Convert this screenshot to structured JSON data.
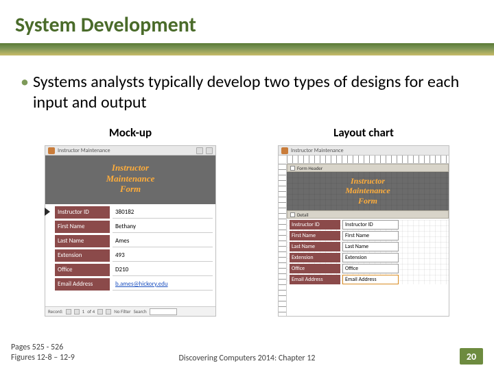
{
  "title": "System Development",
  "bullet": "Systems analysts typically develop two types of designs for each input and output",
  "columns": {
    "left_heading": "Mock-up",
    "right_heading": "Layout chart"
  },
  "mockup": {
    "window_title": "Instructor Maintenance",
    "header_line1": "Instructor",
    "header_line2": "Maintenance",
    "header_line3": "Form",
    "fields": [
      {
        "label": "Instructor ID",
        "value": "380182",
        "link": false
      },
      {
        "label": "First Name",
        "value": "Bethany",
        "link": false
      },
      {
        "label": "Last Name",
        "value": "Ames",
        "link": false
      },
      {
        "label": "Extension",
        "value": "493",
        "link": false
      },
      {
        "label": "Office",
        "value": "D210",
        "link": false
      },
      {
        "label": "Email Address",
        "value": "b.ames@hickory.edu",
        "link": true
      }
    ],
    "footer": {
      "record_label": "Record:",
      "record_pos": "1",
      "record_of": "of 4",
      "filter_text": "No Filter",
      "search_label": "Search"
    }
  },
  "layout": {
    "window_title": "Instructor Maintenance",
    "section_header": "Form Header",
    "section_detail": "Detail",
    "header_line1": "Instructor",
    "header_line2": "Maintenance",
    "header_line3": "Form",
    "fields": [
      {
        "label": "Instructor ID",
        "field": "Instructor ID"
      },
      {
        "label": "First Name",
        "field": "First Name"
      },
      {
        "label": "Last Name",
        "field": "Last Name"
      },
      {
        "label": "Extension",
        "field": "Extension"
      },
      {
        "label": "Office",
        "field": "Office"
      },
      {
        "label": "Email Address",
        "field": "Email Address"
      }
    ]
  },
  "footer": {
    "pages": "Pages 525 - 526",
    "figures": "Figures 12-8 – 12-9",
    "center": "Discovering Computers 2014: Chapter 12",
    "page_number": "20"
  },
  "colors": {
    "title": "#4a6b2a",
    "accent_top": "#5a7a36",
    "accent_bottom": "#c9bc69",
    "form_header_bg": "#6b6b6b",
    "form_header_text": "#ffad3b",
    "label_bg": "#8b4a4a",
    "badge_bg": "#6d8b3f"
  }
}
